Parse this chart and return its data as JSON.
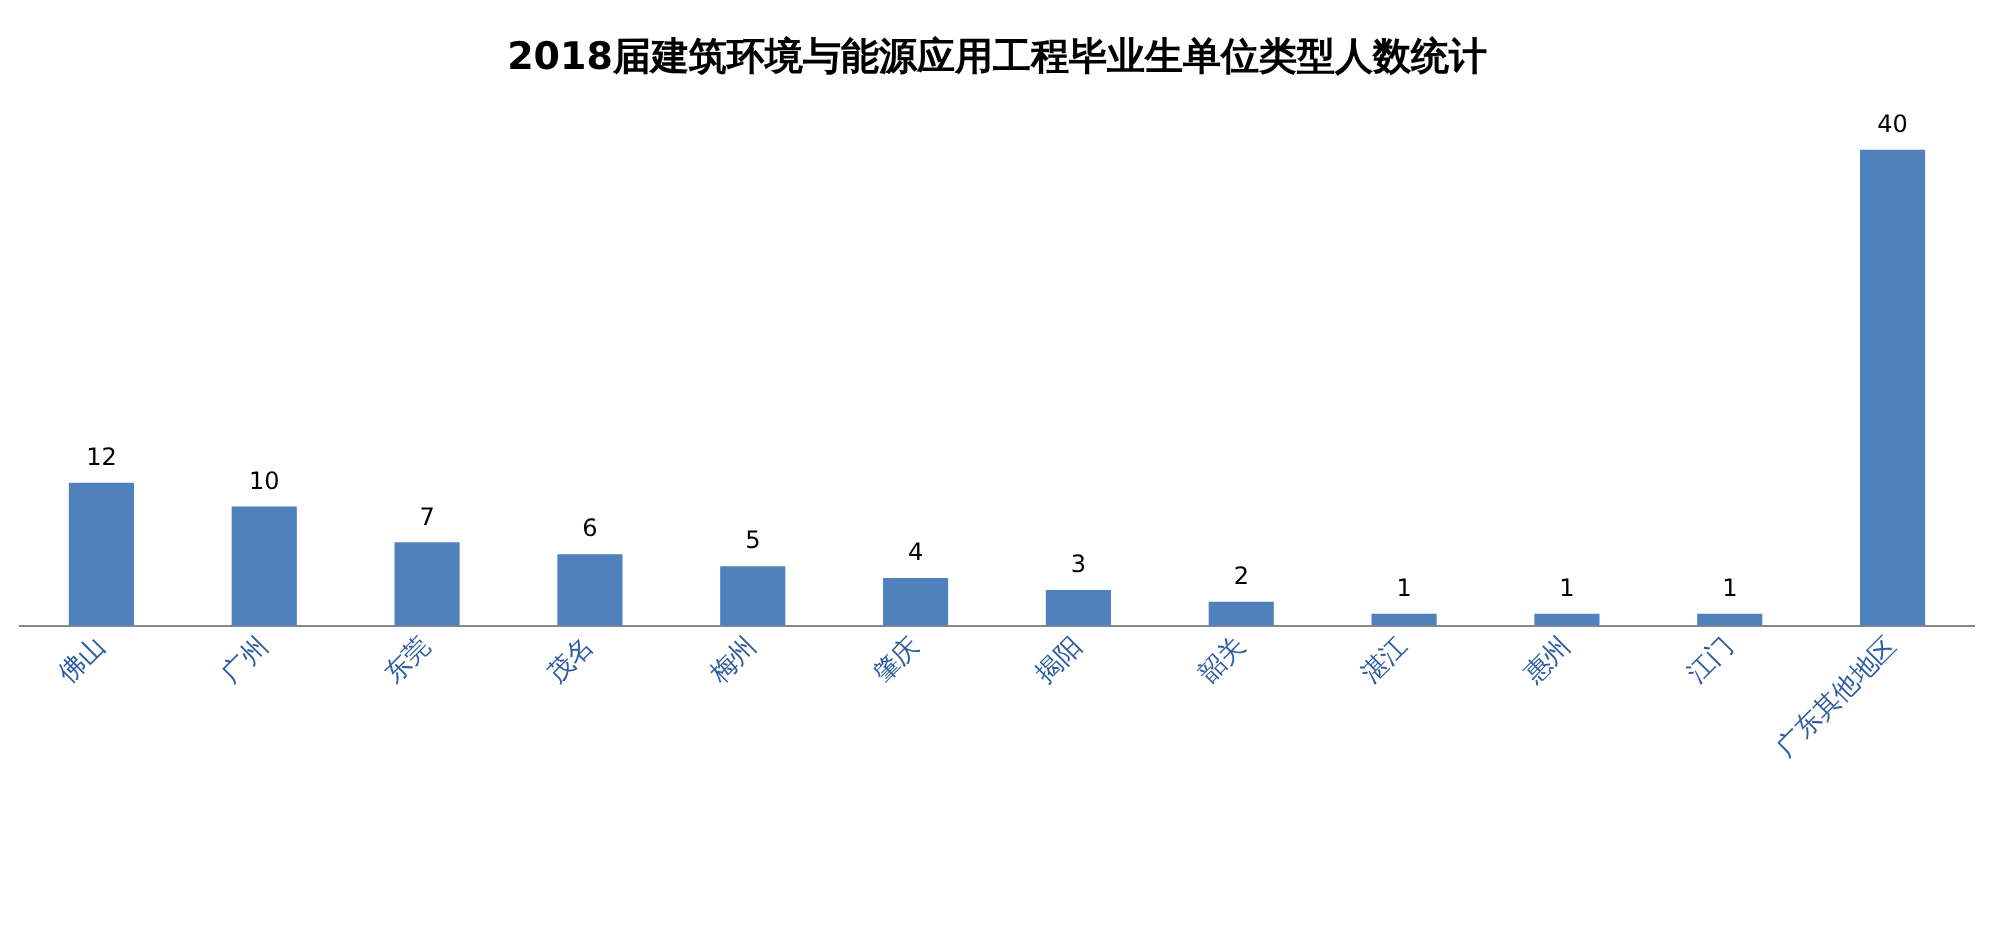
{
  "chart_data": {
    "type": "bar",
    "title": "2018届建筑环境与能源应用工程毕业生单位类型人数统计",
    "categories": [
      "佛山",
      "广州",
      "东莞",
      "茂名",
      "梅州",
      "肇庆",
      "揭阳",
      "韶关",
      "湛江",
      "惠州",
      "江门",
      "广东其他地区"
    ],
    "values": [
      12,
      10,
      7,
      6,
      5,
      4,
      3,
      2,
      1,
      1,
      1,
      40
    ],
    "color": "#4f81bd",
    "data_labels": true,
    "legend": false,
    "grid": false
  }
}
